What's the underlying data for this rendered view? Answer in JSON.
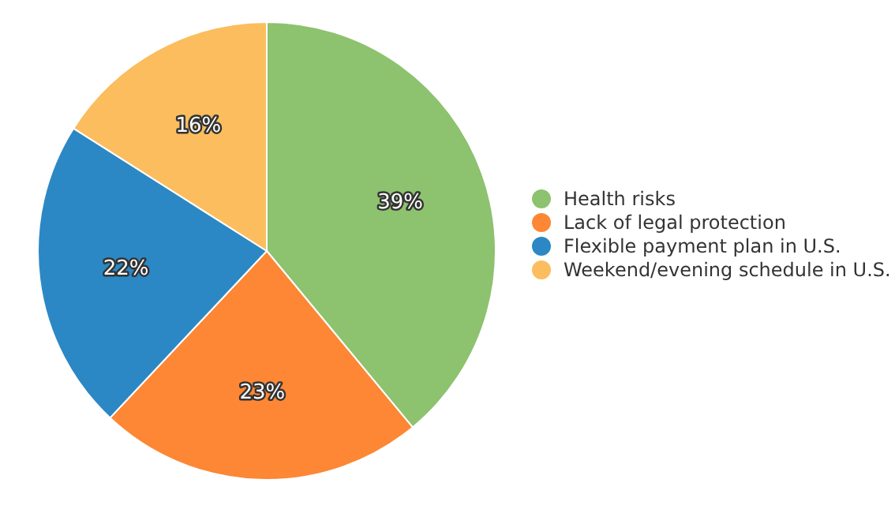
{
  "chart_data": {
    "type": "pie",
    "categories": [
      "Health risks",
      "Lack of legal protection",
      "Flexible payment plan in U.S.",
      "Weekend/evening schedule in U.S."
    ],
    "values": [
      39,
      23,
      22,
      16
    ],
    "value_labels": [
      "39%",
      "23%",
      "22%",
      "16%"
    ],
    "colors": [
      "#8dc26f",
      "#fd8734",
      "#2b88c5",
      "#fbbd5e"
    ],
    "legend": "right"
  }
}
